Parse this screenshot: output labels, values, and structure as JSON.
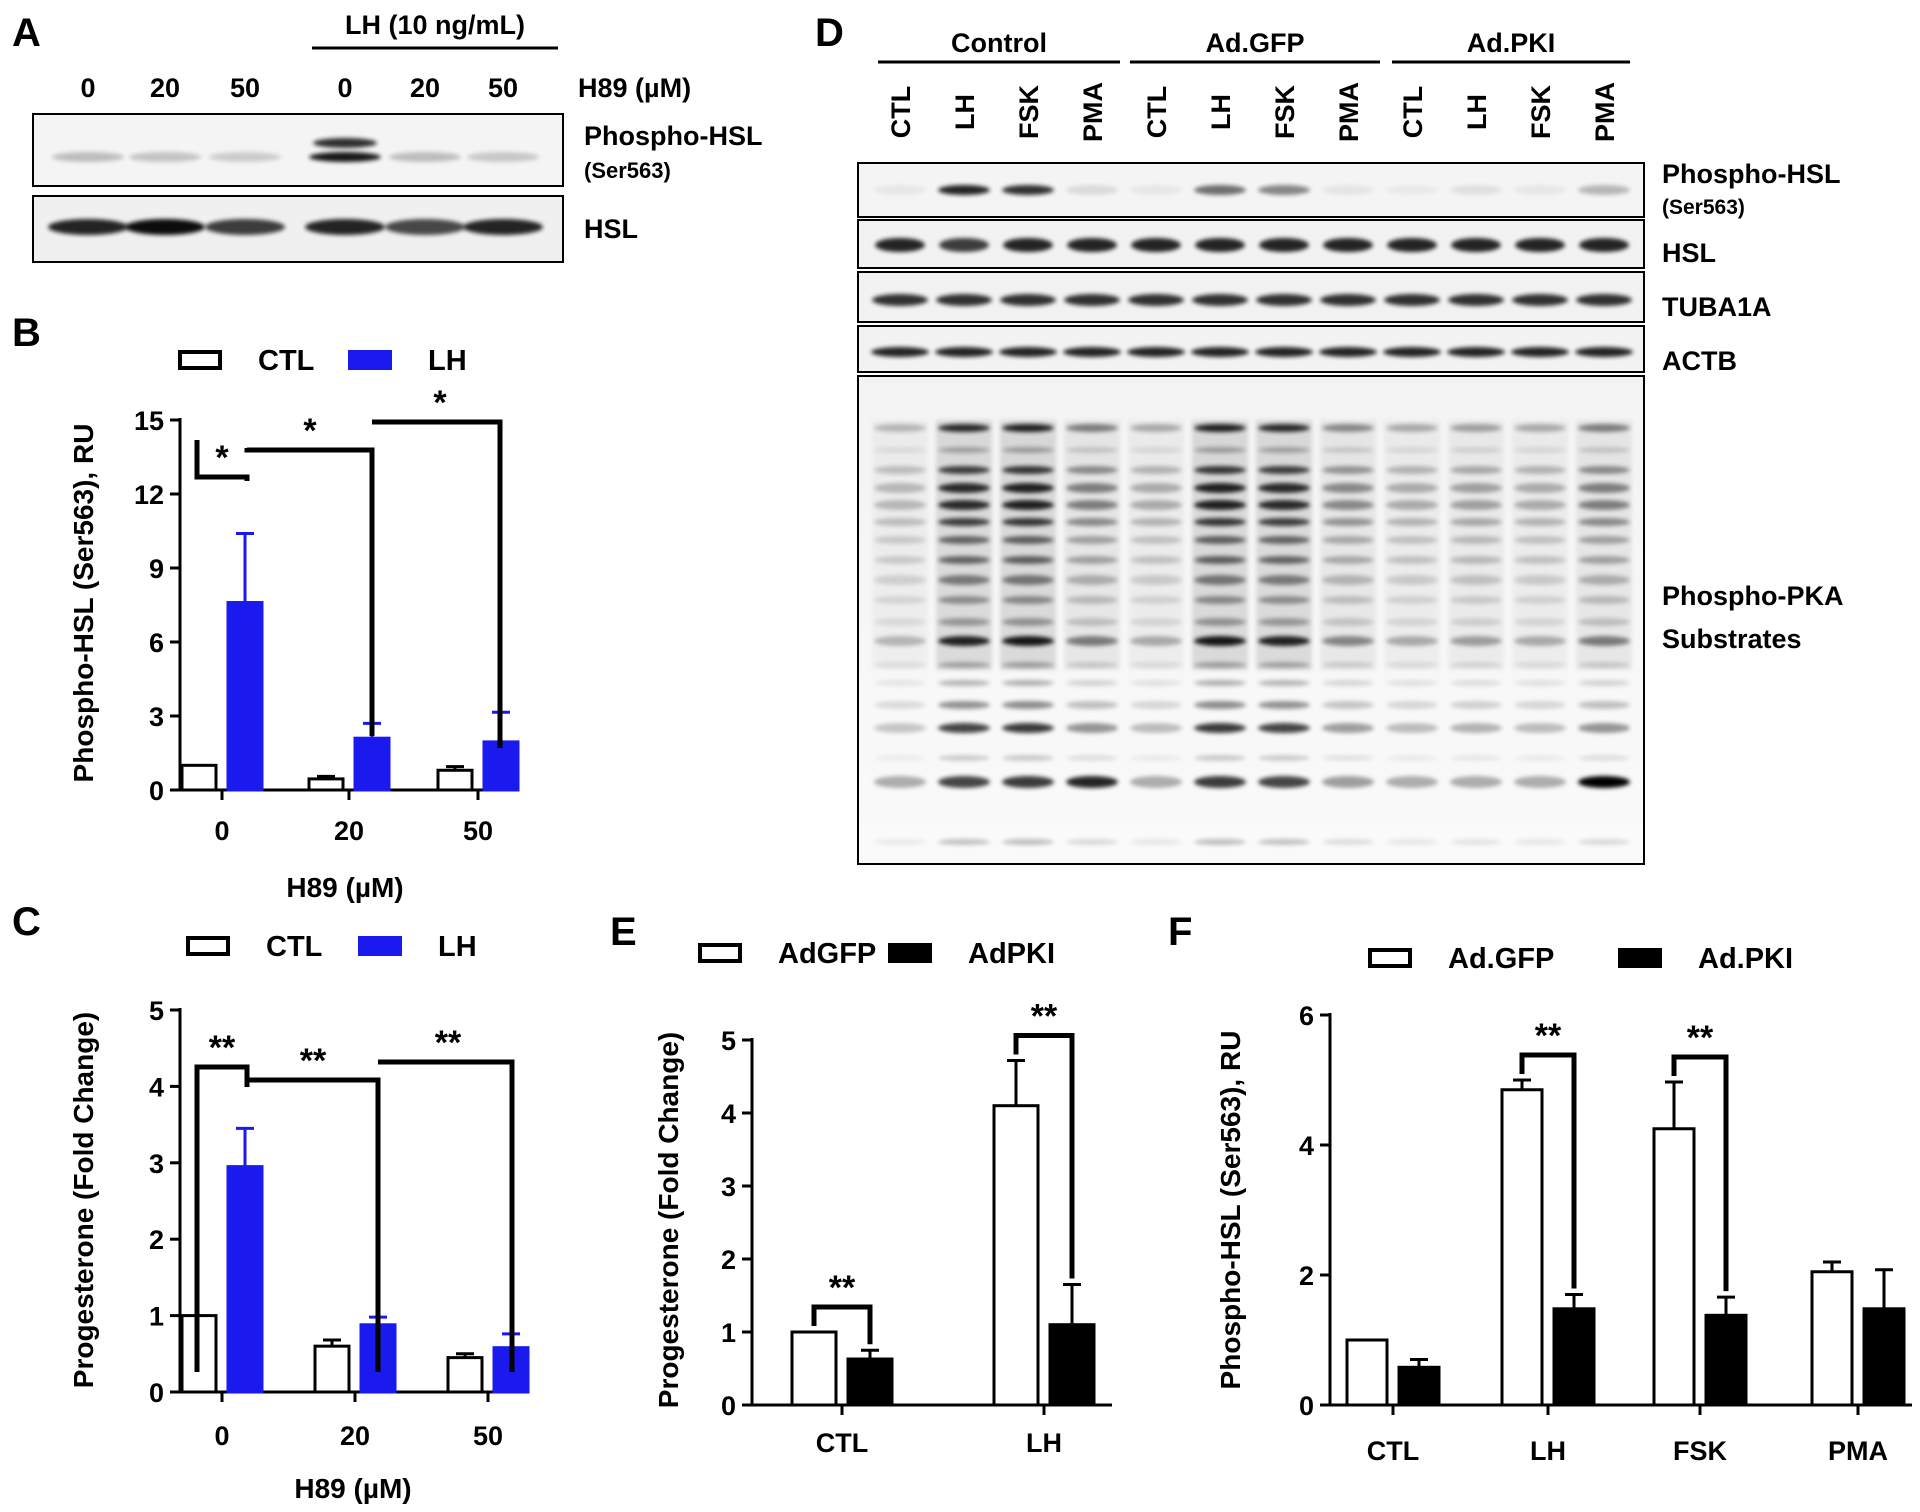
{
  "panel_letters": {
    "a": "A",
    "b": "B",
    "c": "C",
    "d": "D",
    "e": "E",
    "f": "F"
  },
  "blot_a": {
    "header_label": "LH (10 ng/mL)",
    "lane_labels": [
      "0",
      "20",
      "50",
      "0",
      "20",
      "50"
    ],
    "treatment_label": "H89 (µM)",
    "row_labels": [
      {
        "text": "Phospho-HSL",
        "sub": "(Ser563)"
      },
      {
        "text": "HSL",
        "sub": ""
      }
    ]
  },
  "blot_d": {
    "groups": [
      "Control",
      "Ad.GFP",
      "Ad.PKI"
    ],
    "lane_labels": [
      "CTL",
      "LH",
      "FSK",
      "PMA",
      "CTL",
      "LH",
      "FSK",
      "PMA",
      "CTL",
      "LH",
      "FSK",
      "PMA"
    ],
    "row_labels": [
      {
        "text": "Phospho-HSL",
        "sub": "(Ser563)"
      },
      {
        "text": "HSL",
        "sub": ""
      },
      {
        "text": "TUBA1A",
        "sub": ""
      },
      {
        "text": "ACTB",
        "sub": ""
      },
      {
        "text": "Phospho-PKA",
        "sub": "Substrates"
      }
    ]
  },
  "colors": {
    "ctl_fill": "#ffffff",
    "lh_fill": "#1a1aee",
    "adpki_fill": "#000000",
    "stroke": "#000000"
  },
  "chart_data": [
    {
      "id": "B",
      "type": "bar",
      "xlabel": "H89  (µM)",
      "ylabel": "Phospho-HSL (Ser563), RU",
      "categories": [
        "0",
        "20",
        "50"
      ],
      "ylim": [
        0,
        15
      ],
      "yticks": [
        "0",
        "3",
        "6",
        "9",
        "12",
        "15"
      ],
      "series": [
        {
          "name": "CTL",
          "values": [
            1.0,
            0.45,
            0.8
          ],
          "errors": [
            0,
            0.1,
            0.15
          ]
        },
        {
          "name": "LH",
          "values": [
            7.6,
            2.1,
            1.95
          ],
          "errors": [
            2.8,
            0.6,
            1.2
          ]
        }
      ],
      "significance": [
        "*",
        "*",
        "*"
      ],
      "legend": "top"
    },
    {
      "id": "C",
      "type": "bar",
      "xlabel": "H89  (µM)",
      "ylabel": "Progesterone (Fold Change)",
      "categories": [
        "0",
        "20",
        "50"
      ],
      "ylim": [
        0,
        5
      ],
      "yticks": [
        "0",
        "1",
        "2",
        "3",
        "4",
        "5"
      ],
      "series": [
        {
          "name": "CTL",
          "values": [
            1.0,
            0.6,
            0.45
          ],
          "errors": [
            0,
            0.08,
            0.05
          ]
        },
        {
          "name": "LH",
          "values": [
            2.95,
            0.88,
            0.58
          ],
          "errors": [
            0.5,
            0.1,
            0.18
          ]
        }
      ],
      "significance": [
        "**",
        "**",
        "**"
      ],
      "legend": "top"
    },
    {
      "id": "E",
      "type": "bar",
      "xlabel": "",
      "ylabel": "Progesterone (Fold Change)",
      "categories": [
        "CTL",
        "LH"
      ],
      "ylim": [
        0,
        5
      ],
      "yticks": [
        "0",
        "1",
        "2",
        "3",
        "4",
        "5"
      ],
      "series": [
        {
          "name": "AdGFP",
          "values": [
            1.0,
            4.1
          ],
          "errors": [
            0,
            0.62
          ]
        },
        {
          "name": "AdPKI",
          "values": [
            0.63,
            1.1
          ],
          "errors": [
            0.12,
            0.55
          ]
        }
      ],
      "significance": [
        "**",
        "**"
      ],
      "legend": "top"
    },
    {
      "id": "F",
      "type": "bar",
      "xlabel": "",
      "ylabel": "Phospho-HSL (Ser563), RU",
      "categories": [
        "CTL",
        "LH",
        "FSK",
        "PMA"
      ],
      "ylim": [
        0,
        6
      ],
      "yticks": [
        "0",
        "2",
        "4",
        "6"
      ],
      "series": [
        {
          "name": "Ad.GFP",
          "values": [
            1.0,
            4.85,
            4.25,
            2.05
          ],
          "errors": [
            0,
            0.15,
            0.72,
            0.15
          ]
        },
        {
          "name": "Ad.PKI",
          "values": [
            0.58,
            1.48,
            1.38,
            1.48
          ],
          "errors": [
            0.12,
            0.22,
            0.28,
            0.6
          ]
        }
      ],
      "significance": [
        "",
        "**",
        "**",
        ""
      ],
      "legend": "top"
    }
  ]
}
